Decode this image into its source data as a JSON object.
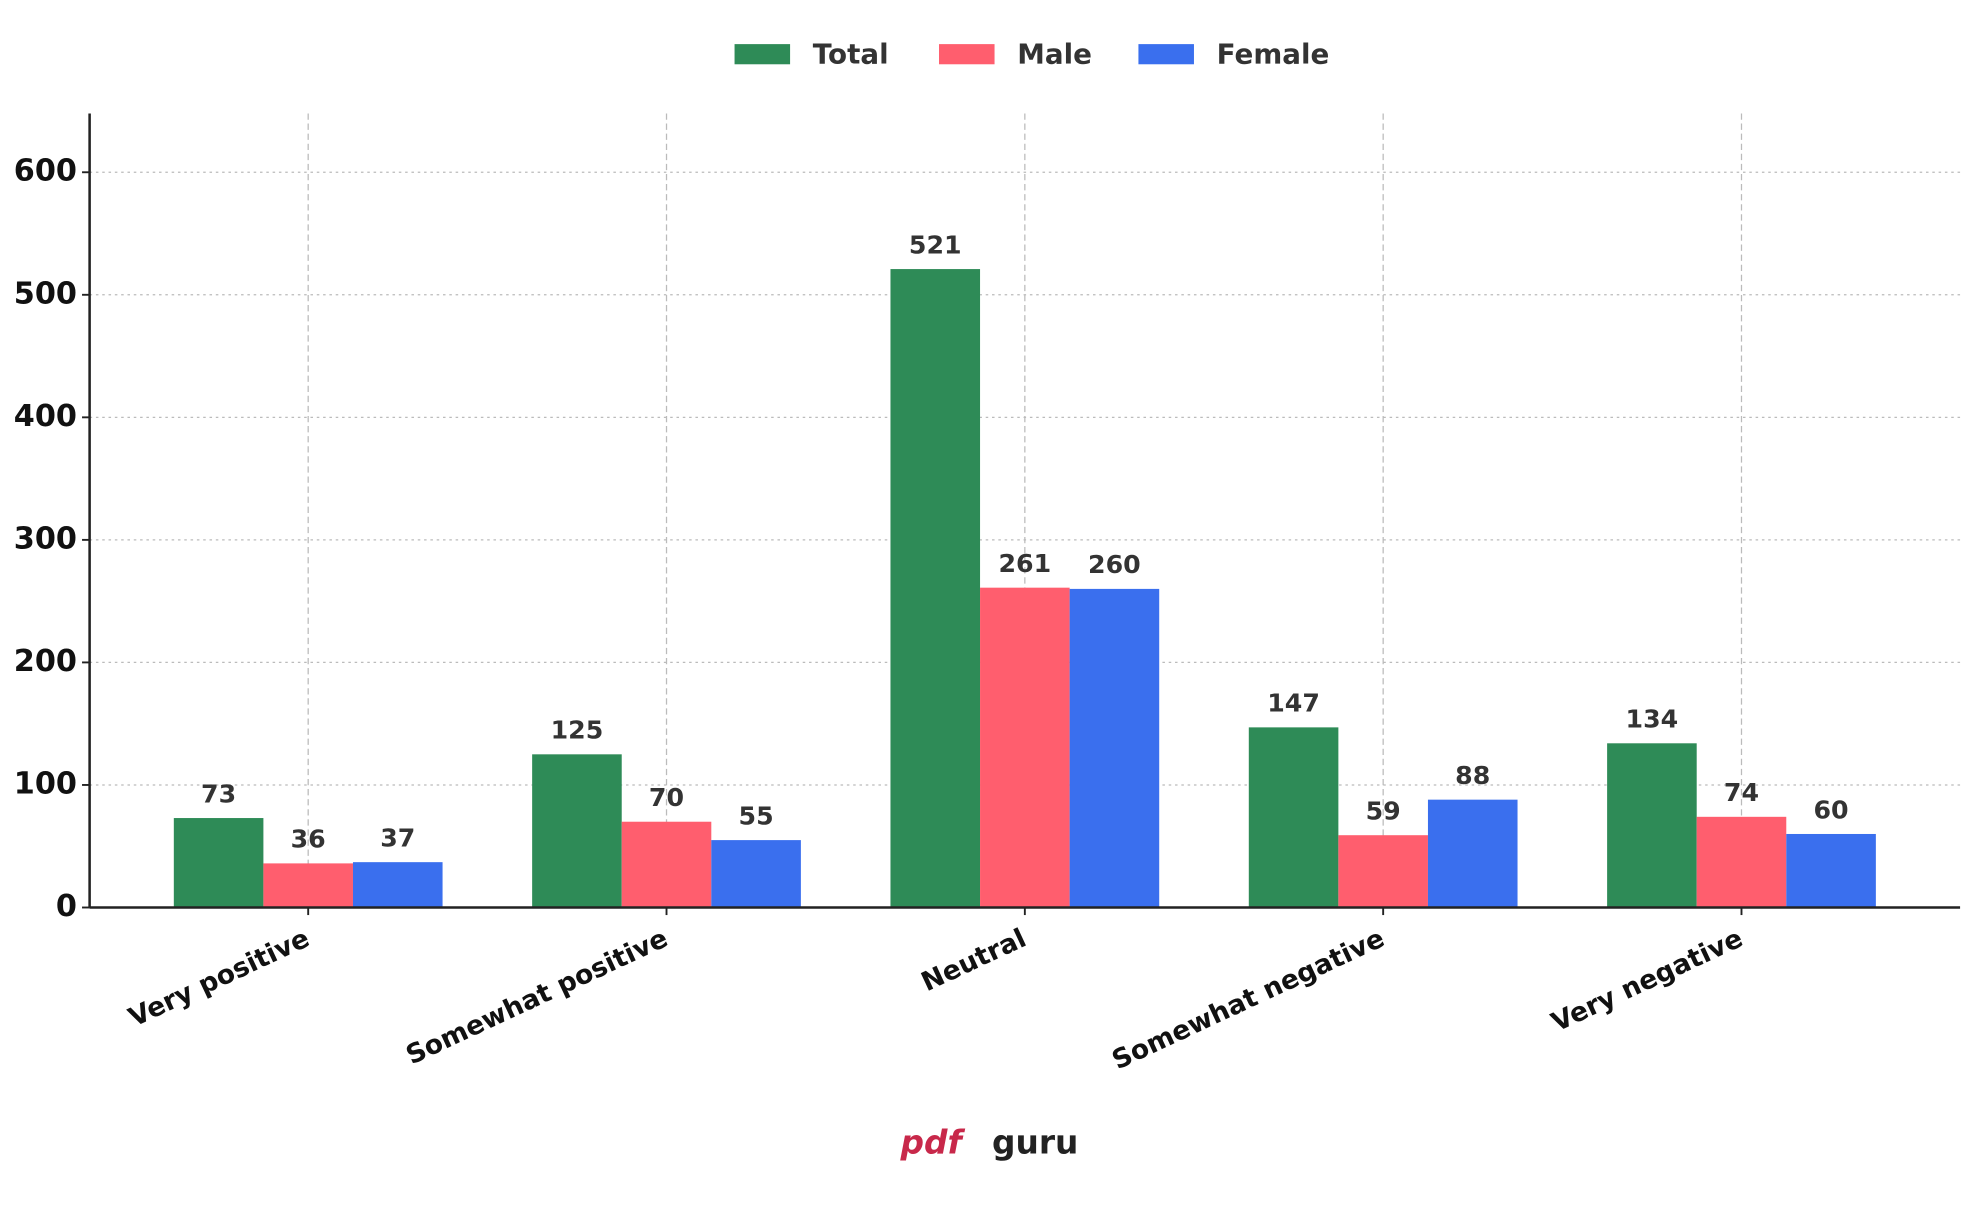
{
  "chart_data": {
    "type": "bar",
    "categories": [
      "Very positive",
      "Somewhat positive",
      "Neutral",
      "Somewhat negative",
      "Very negative"
    ],
    "series": [
      {
        "name": "Total",
        "color": "#2e8b57",
        "values": [
          73,
          125,
          521,
          147,
          134
        ]
      },
      {
        "name": "Male",
        "color": "#ff5e6e",
        "values": [
          36,
          70,
          261,
          59,
          74
        ]
      },
      {
        "name": "Female",
        "color": "#3a6fee",
        "values": [
          37,
          55,
          260,
          88,
          60
        ]
      }
    ],
    "ylim": [
      0,
      648
    ],
    "yticks": [
      0,
      100,
      200,
      300,
      400,
      500,
      600
    ],
    "grid": true,
    "legend": "top"
  },
  "watermark": {
    "brand": "pdf",
    "name": "guru"
  }
}
